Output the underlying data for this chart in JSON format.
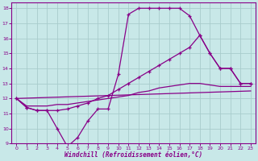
{
  "xlabel": "Windchill (Refroidissement éolien,°C)",
  "background_color": "#c8e8e8",
  "grid_color": "#a8cccc",
  "line_color": "#880088",
  "xlim": [
    -0.5,
    23.5
  ],
  "ylim": [
    9,
    18.4
  ],
  "xticks": [
    0,
    1,
    2,
    3,
    4,
    5,
    6,
    7,
    8,
    9,
    10,
    11,
    12,
    13,
    14,
    15,
    16,
    17,
    18,
    19,
    20,
    21,
    22,
    23
  ],
  "yticks": [
    9,
    10,
    11,
    12,
    13,
    14,
    15,
    16,
    17,
    18
  ],
  "line1_x": [
    0,
    1,
    2,
    3,
    4,
    5,
    6,
    7,
    8,
    9,
    10,
    11,
    12,
    13,
    14,
    15,
    16,
    17,
    18,
    19,
    20,
    21,
    22,
    23
  ],
  "line1_y": [
    12.0,
    11.4,
    11.2,
    11.2,
    10.0,
    8.8,
    9.4,
    10.5,
    11.3,
    11.3,
    13.6,
    17.6,
    18.0,
    18.0,
    18.0,
    18.0,
    18.0,
    17.5,
    16.2,
    15.0,
    14.0,
    14.0,
    13.0,
    13.0
  ],
  "line2_x": [
    0,
    1,
    2,
    3,
    4,
    5,
    6,
    7,
    8,
    9,
    10,
    11,
    12,
    13,
    14,
    15,
    16,
    17,
    18,
    19,
    20,
    21,
    22,
    23
  ],
  "line2_y": [
    12.0,
    11.4,
    11.2,
    11.2,
    11.2,
    11.3,
    11.5,
    11.7,
    12.0,
    12.2,
    12.6,
    13.0,
    13.4,
    13.8,
    14.2,
    14.6,
    15.0,
    15.4,
    16.2,
    15.0,
    14.0,
    14.0,
    13.0,
    13.0
  ],
  "line3_x": [
    0,
    1,
    2,
    3,
    4,
    5,
    6,
    7,
    8,
    9,
    10,
    11,
    12,
    13,
    14,
    15,
    16,
    17,
    18,
    19,
    20,
    21,
    22,
    23
  ],
  "line3_y": [
    12.0,
    11.5,
    11.5,
    11.5,
    11.6,
    11.6,
    11.7,
    11.8,
    11.9,
    12.0,
    12.1,
    12.2,
    12.4,
    12.5,
    12.7,
    12.8,
    12.9,
    13.0,
    13.0,
    12.9,
    12.8,
    12.8,
    12.8,
    12.8
  ],
  "line4_x": [
    0,
    23
  ],
  "line4_y": [
    12.0,
    12.5
  ]
}
